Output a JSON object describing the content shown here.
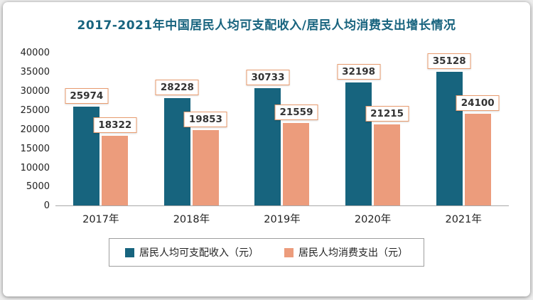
{
  "chart_data": {
    "type": "bar",
    "title": "2017-2021年中国居民人均可支配收入/居民人均消费支出增长情况",
    "title_color": "#17637E",
    "categories": [
      "2017年",
      "2018年",
      "2019年",
      "2020年",
      "2021年"
    ],
    "series": [
      {
        "key": "disposable-income",
        "name": "居民人均可支配收入（元）",
        "color": "#17647E",
        "values": [
          25974,
          28228,
          30733,
          32198,
          35128
        ]
      },
      {
        "key": "consumption-expenditure",
        "name": "居民人均消费支出（元）",
        "color": "#EC9C7C",
        "values": [
          18322,
          19853,
          21559,
          21215,
          24100
        ]
      }
    ],
    "ylim": [
      0,
      40000
    ],
    "ytick_step": 5000,
    "yticks": [
      0,
      5000,
      10000,
      15000,
      20000,
      25000,
      30000,
      35000,
      40000
    ],
    "grid": false,
    "legend_position": "bottom",
    "value_label_border_color": "#E89B6E"
  }
}
